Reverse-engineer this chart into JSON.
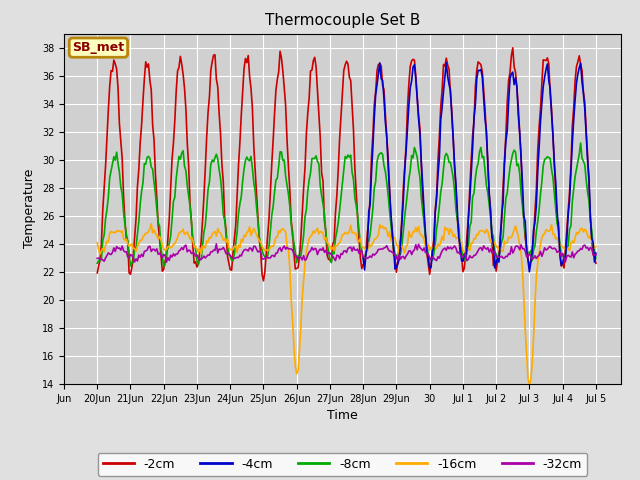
{
  "title": "Thermocouple Set B",
  "xlabel": "Time",
  "ylabel": "Temperature",
  "ylim": [
    14,
    39
  ],
  "yticks": [
    14,
    16,
    18,
    20,
    22,
    24,
    26,
    28,
    30,
    32,
    34,
    36,
    38
  ],
  "fig_bg_color": "#e0e0e0",
  "plot_bg_color": "#d0d0d0",
  "annotation_text": "SB_met",
  "annotation_bg": "#ffffc0",
  "annotation_border": "#b8860b",
  "annotation_text_color": "#8b0000",
  "series_colors": {
    "-2cm": "#cc0000",
    "-4cm": "#0000cc",
    "-8cm": "#00aa00",
    "-16cm": "#ffaa00",
    "-32cm": "#aa00aa"
  },
  "legend_labels": [
    "-2cm",
    "-4cm",
    "-8cm",
    "-16cm",
    "-32cm"
  ],
  "legend_colors": [
    "#cc0000",
    "#0000cc",
    "#00aa00",
    "#ffaa00",
    "#aa00aa"
  ]
}
